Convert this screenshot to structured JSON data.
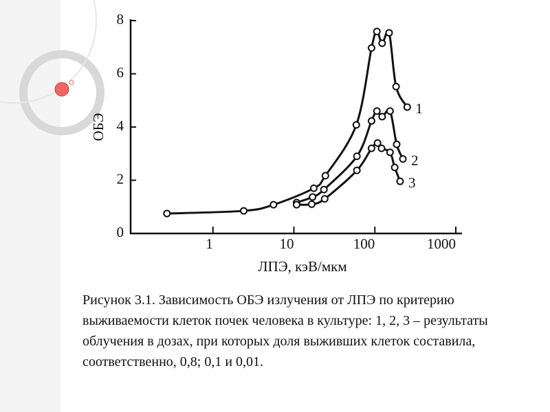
{
  "chart_data": {
    "type": "line",
    "xlabel": "ЛПЭ, кэВ/мкм",
    "ylabel": "ОБЭ",
    "xscale": "log",
    "xlim": [
      0.1,
      1000
    ],
    "ylim": [
      0,
      8
    ],
    "xticks": [
      1,
      10,
      100,
      1000
    ],
    "yticks": [
      0,
      2,
      4,
      6,
      8
    ],
    "series": [
      {
        "name": "1",
        "color": "#111111",
        "x": [
          0.27,
          2.4,
          5.6,
          17.6,
          24.5,
          59,
          91,
          106,
          123,
          150,
          183,
          251
        ],
        "values": [
          0.75,
          0.85,
          1.08,
          1.7,
          2.17,
          4.08,
          6.97,
          7.59,
          7.15,
          7.54,
          5.52,
          4.75
        ]
      },
      {
        "name": "2",
        "color": "#111111",
        "x": [
          10.8,
          17,
          23.5,
          60,
          91,
          106,
          123,
          154,
          186,
          222
        ],
        "values": [
          1.16,
          1.37,
          1.65,
          2.9,
          4.23,
          4.6,
          4.39,
          4.6,
          3.35,
          2.8
        ]
      },
      {
        "name": "3",
        "color": "#111111",
        "x": [
          10.8,
          16.6,
          24,
          60,
          91,
          108,
          121,
          154,
          176,
          205
        ],
        "values": [
          1.08,
          1.1,
          1.3,
          2.37,
          3.2,
          3.4,
          3.2,
          3.05,
          2.48,
          1.96
        ]
      }
    ]
  },
  "caption": "Рисунок 3.1. Зависимость ОБЭ излучения от ЛПЭ по критерию выживаемости клеток почек человека в культуре: 1, 2, 3 – результаты облучения в дозах, при которых доля выживших клеток составила, соответственно, 0,8; 0,1 и 0,01."
}
